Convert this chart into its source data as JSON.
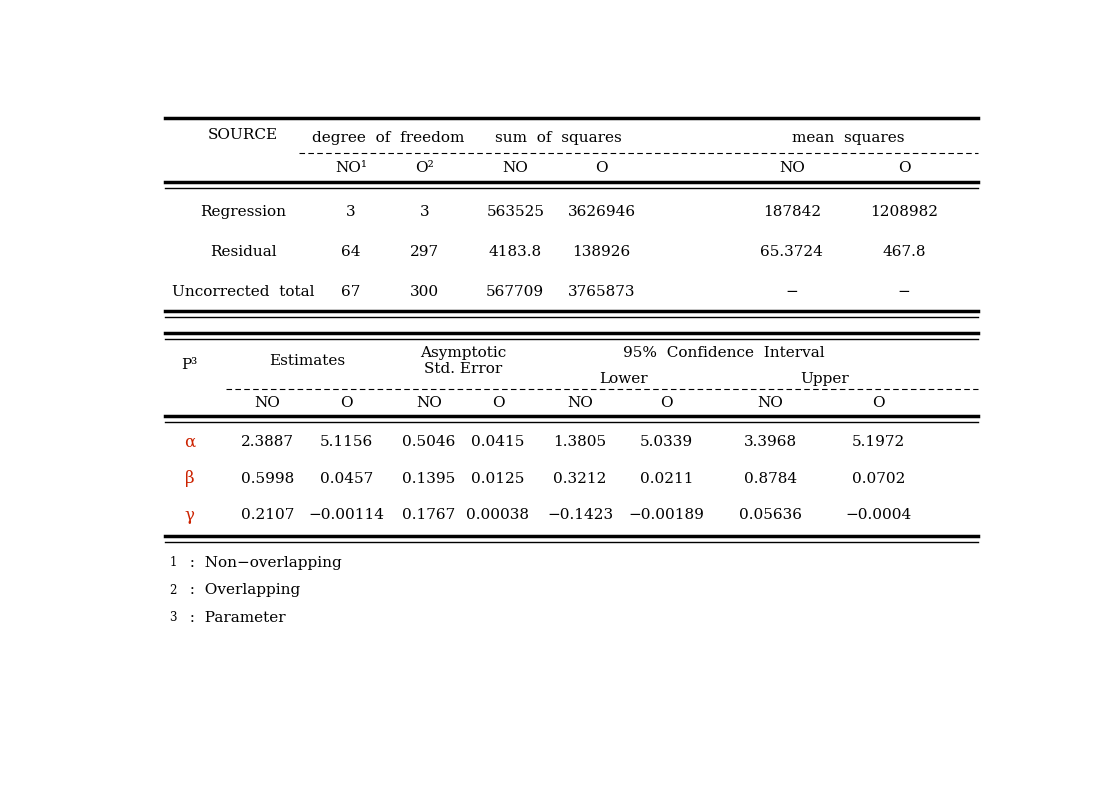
{
  "fig_width": 11.15,
  "fig_height": 7.93,
  "bg_color": "#ffffff",
  "table1_data": [
    [
      "Regression",
      "3",
      "3",
      "563525",
      "3626946",
      "187842",
      "1208982"
    ],
    [
      "Residual",
      "64",
      "297",
      "4183.8",
      "138926",
      "65.3724",
      "467.8"
    ],
    [
      "Uncorrected  total",
      "67",
      "300",
      "567709",
      "3765873",
      "−",
      "−"
    ]
  ],
  "table2_data": [
    [
      "α",
      "2.3887",
      "5.1156",
      "0.5046",
      "0.0415",
      "1.3805",
      "5.0339",
      "3.3968",
      "5.1972"
    ],
    [
      "β",
      "0.5998",
      "0.0457",
      "0.1395",
      "0.0125",
      "0.3212",
      "0.0211",
      "0.8784",
      "0.0702"
    ],
    [
      "γ",
      "0.2107",
      "−0.00114",
      "0.1767",
      "0.00038",
      "−0.1423",
      "−0.00189",
      "0.05636",
      "−0.0004"
    ]
  ],
  "footnotes": [
    "1  :  Non−overlapping",
    "2  :  Overlapping",
    "3  :  Parameter"
  ],
  "param_color": "#cc2200",
  "text_color": "#000000",
  "font_family": "serif"
}
